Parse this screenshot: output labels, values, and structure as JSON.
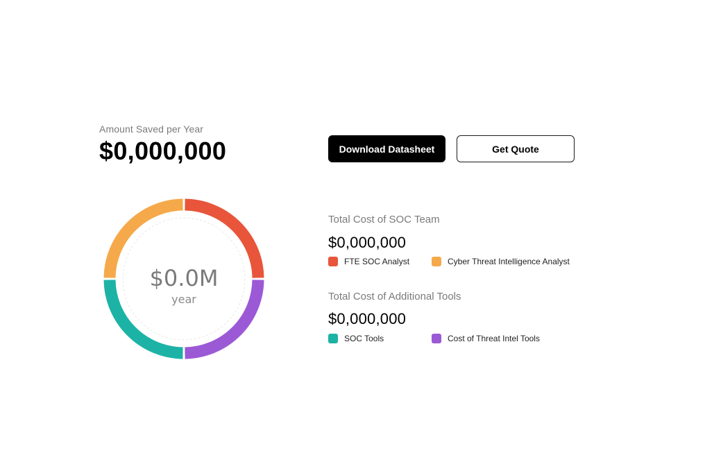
{
  "summary": {
    "label": "Amount Saved per Year",
    "amount": "$0,000,000"
  },
  "actions": {
    "download_label": "Download Datasheet",
    "quote_label": "Get Quote"
  },
  "donut": {
    "center_value": "$0.0M",
    "center_unit": "year",
    "segments": [
      {
        "name": "FTE SOC Analyst",
        "color": "#e8553a",
        "share": 0.25
      },
      {
        "name": "Cost of Threat Intel Tools",
        "color": "#9b59d6",
        "share": 0.25
      },
      {
        "name": "SOC Tools",
        "color": "#1cb3a6",
        "share": 0.25
      },
      {
        "name": "Cyber Threat Intelligence Analyst",
        "color": "#f5a94a",
        "share": 0.25
      }
    ]
  },
  "soc_team": {
    "title": "Total Cost of SOC Team",
    "amount": "$0,000,000",
    "legend": [
      {
        "label": "FTE SOC Analyst",
        "color": "#e8553a"
      },
      {
        "label": "Cyber Threat Intelligence Analyst",
        "color": "#f5a94a"
      }
    ]
  },
  "tools": {
    "title": "Total Cost of Additional Tools",
    "amount": "$0,000,000",
    "legend": [
      {
        "label": "SOC Tools",
        "color": "#1cb3a6"
      },
      {
        "label": "Cost of Threat Intel Tools",
        "color": "#9b59d6"
      }
    ]
  }
}
